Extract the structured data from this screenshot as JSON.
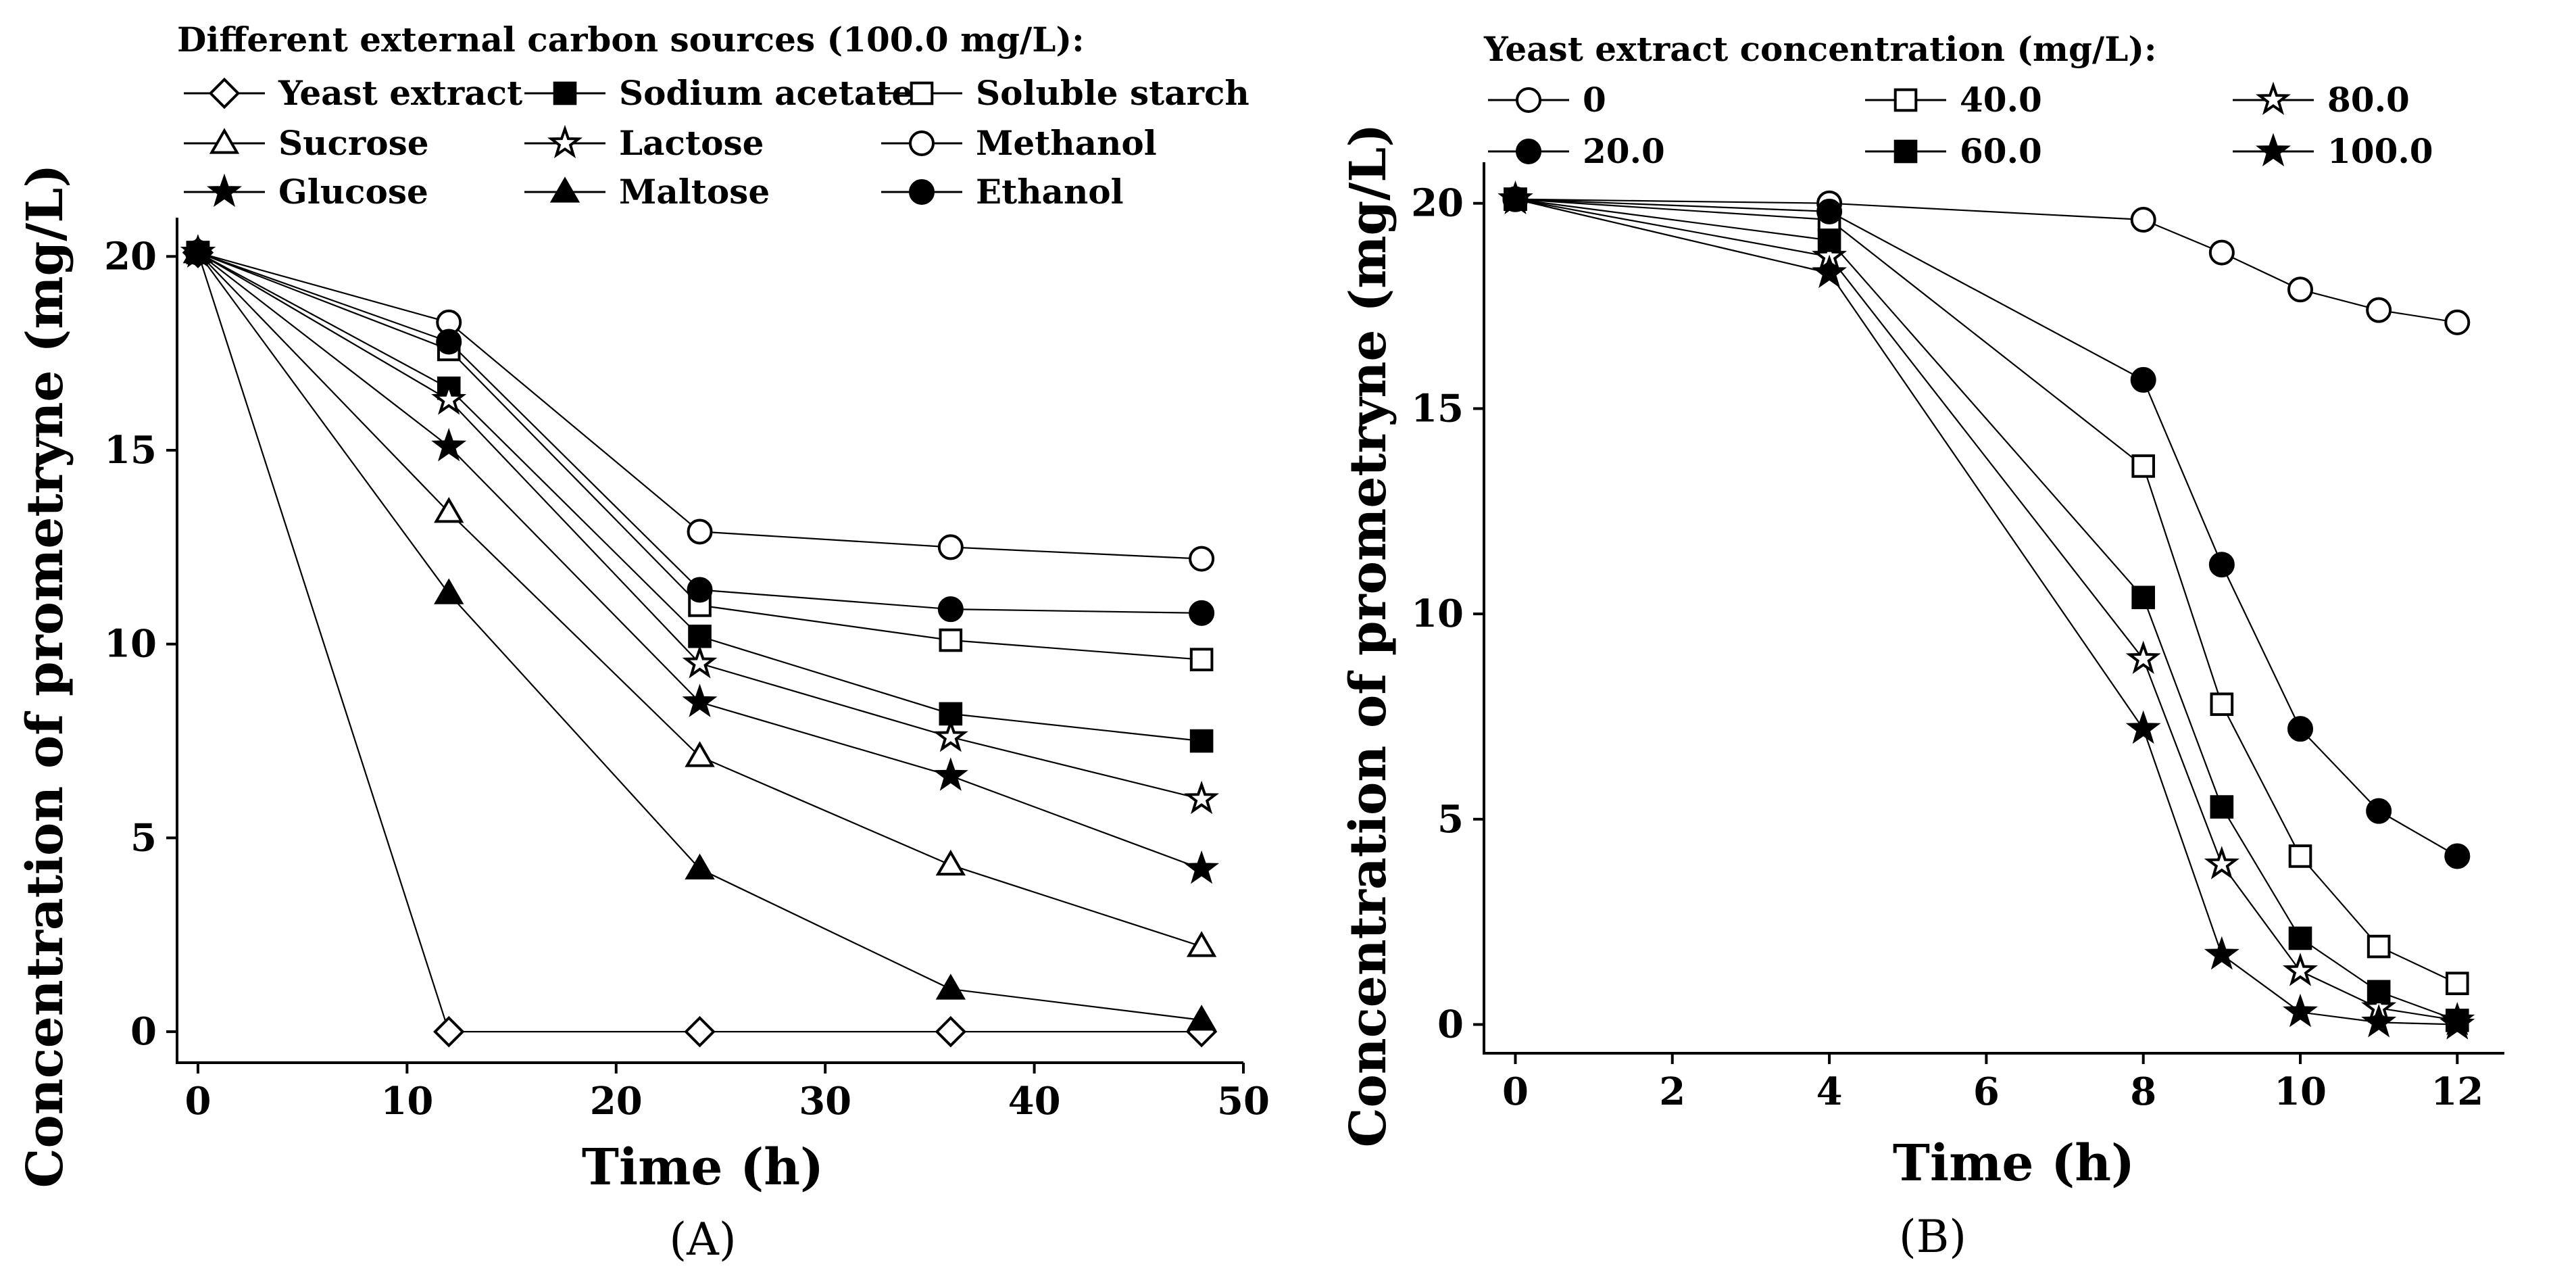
{
  "chart_data": [
    {
      "type": "line",
      "panel_label": "(A)",
      "xlabel": "Time (h)",
      "ylabel": "Concentration of prometryne (mg/L)",
      "xlim": [
        -1,
        50
      ],
      "ylim": [
        -0.8,
        21
      ],
      "xticks": [
        0,
        10,
        20,
        30,
        40,
        50
      ],
      "yticks": [
        0,
        5,
        10,
        15,
        20
      ],
      "grid": false,
      "legend_title": "Different external carbon sources (100.0 mg/L):",
      "legend_placement": "top",
      "x": [
        0,
        12,
        24,
        36,
        48
      ],
      "series": [
        {
          "name": "Yeast extract",
          "marker": "diamond-open",
          "values": [
            20.1,
            0.0,
            0.0,
            0.0,
            0.0
          ]
        },
        {
          "name": "Sodium acetate",
          "marker": "square-filled",
          "values": [
            20.1,
            16.6,
            10.2,
            8.2,
            7.5
          ]
        },
        {
          "name": "Soluble starch",
          "marker": "square-open",
          "values": [
            20.1,
            17.6,
            11.0,
            10.1,
            9.6
          ]
        },
        {
          "name": "Sucrose",
          "marker": "triangle-open",
          "values": [
            20.1,
            13.4,
            7.1,
            4.3,
            2.2
          ]
        },
        {
          "name": "Lactose",
          "marker": "star-open",
          "values": [
            20.1,
            16.3,
            9.5,
            7.6,
            6.0
          ]
        },
        {
          "name": "Methanol",
          "marker": "circle-open",
          "values": [
            20.1,
            18.3,
            12.9,
            12.5,
            12.2
          ]
        },
        {
          "name": "Glucose",
          "marker": "star-filled",
          "values": [
            20.1,
            15.1,
            8.5,
            6.6,
            4.2
          ]
        },
        {
          "name": "Maltose",
          "marker": "triangle-filled",
          "values": [
            20.1,
            11.3,
            4.2,
            1.1,
            0.3
          ]
        },
        {
          "name": "Ethanol",
          "marker": "circle-filled",
          "values": [
            20.1,
            17.8,
            11.4,
            10.9,
            10.8
          ]
        }
      ]
    },
    {
      "type": "line",
      "panel_label": "(B)",
      "xlabel": "Time (h)",
      "ylabel": "Concentration of prometryne (mg/L)",
      "xlim": [
        -0.4,
        12.6
      ],
      "ylim": [
        -0.7,
        21
      ],
      "xticks": [
        0,
        2,
        4,
        6,
        8,
        10,
        12
      ],
      "yticks": [
        0,
        5,
        10,
        15,
        20
      ],
      "grid": false,
      "legend_title": "Yeast extract concentration (mg/L):",
      "legend_placement": "top",
      "x": [
        0,
        4,
        8,
        9,
        10,
        11,
        12
      ],
      "series": [
        {
          "name": "0",
          "marker": "circle-open",
          "values": [
            20.1,
            20.0,
            19.6,
            18.8,
            17.9,
            17.4,
            17.1
          ]
        },
        {
          "name": "40.0",
          "marker": "square-open",
          "values": [
            20.1,
            19.6,
            13.6,
            7.8,
            4.1,
            1.9,
            1.0
          ]
        },
        {
          "name": "80.0",
          "marker": "star-open",
          "values": [
            20.1,
            18.7,
            8.9,
            3.9,
            1.3,
            0.4,
            0.1
          ]
        },
        {
          "name": "20.0",
          "marker": "circle-filled",
          "values": [
            20.1,
            19.8,
            15.7,
            11.2,
            7.2,
            5.2,
            4.1
          ]
        },
        {
          "name": "60.0",
          "marker": "square-filled",
          "values": [
            20.1,
            19.1,
            10.4,
            5.3,
            2.1,
            0.8,
            0.1
          ]
        },
        {
          "name": "100.0",
          "marker": "star-filled",
          "values": [
            20.1,
            18.3,
            7.2,
            1.7,
            0.3,
            0.05,
            0.0
          ]
        }
      ]
    }
  ]
}
